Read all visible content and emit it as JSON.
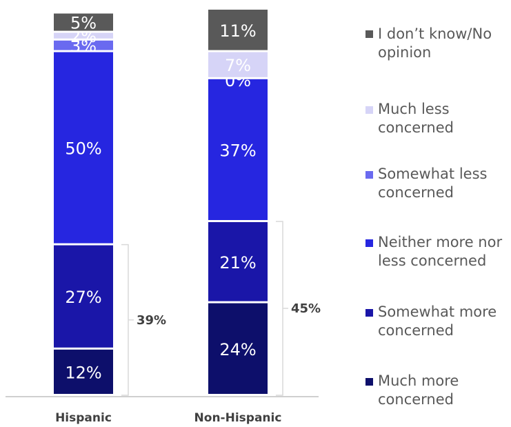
{
  "chart_data": {
    "type": "bar",
    "stacked": true,
    "percent": true,
    "categories": [
      "Hispanic",
      "Non-Hispanic"
    ],
    "series": [
      {
        "name": "Much more concerned",
        "color": "#0d0f6b",
        "values": [
          12,
          24
        ]
      },
      {
        "name": "Somewhat more concerned",
        "color": "#1a16a8",
        "values": [
          27,
          21
        ]
      },
      {
        "name": "Neither more nor less concerned",
        "color": "#2626e0",
        "values": [
          50,
          37
        ]
      },
      {
        "name": "Somewhat less concerned",
        "color": "#6a6af0",
        "values": [
          3,
          0
        ]
      },
      {
        "name": "Much less concerned",
        "color": "#d6d4f7",
        "values": [
          2,
          7
        ]
      },
      {
        "name": "I don’t know/No opinion",
        "color": "#595959",
        "values": [
          5,
          11
        ]
      }
    ],
    "value_labels": [
      [
        "12%",
        "27%",
        "50%",
        "3%",
        "2%",
        "5%"
      ],
      [
        "24%",
        "21%",
        "37%",
        "0%",
        "7%",
        "11%"
      ]
    ],
    "bracket_totals": [
      "39%",
      "45%"
    ],
    "legend_position": "right",
    "ylim": [
      0,
      100
    ],
    "grid": false
  }
}
